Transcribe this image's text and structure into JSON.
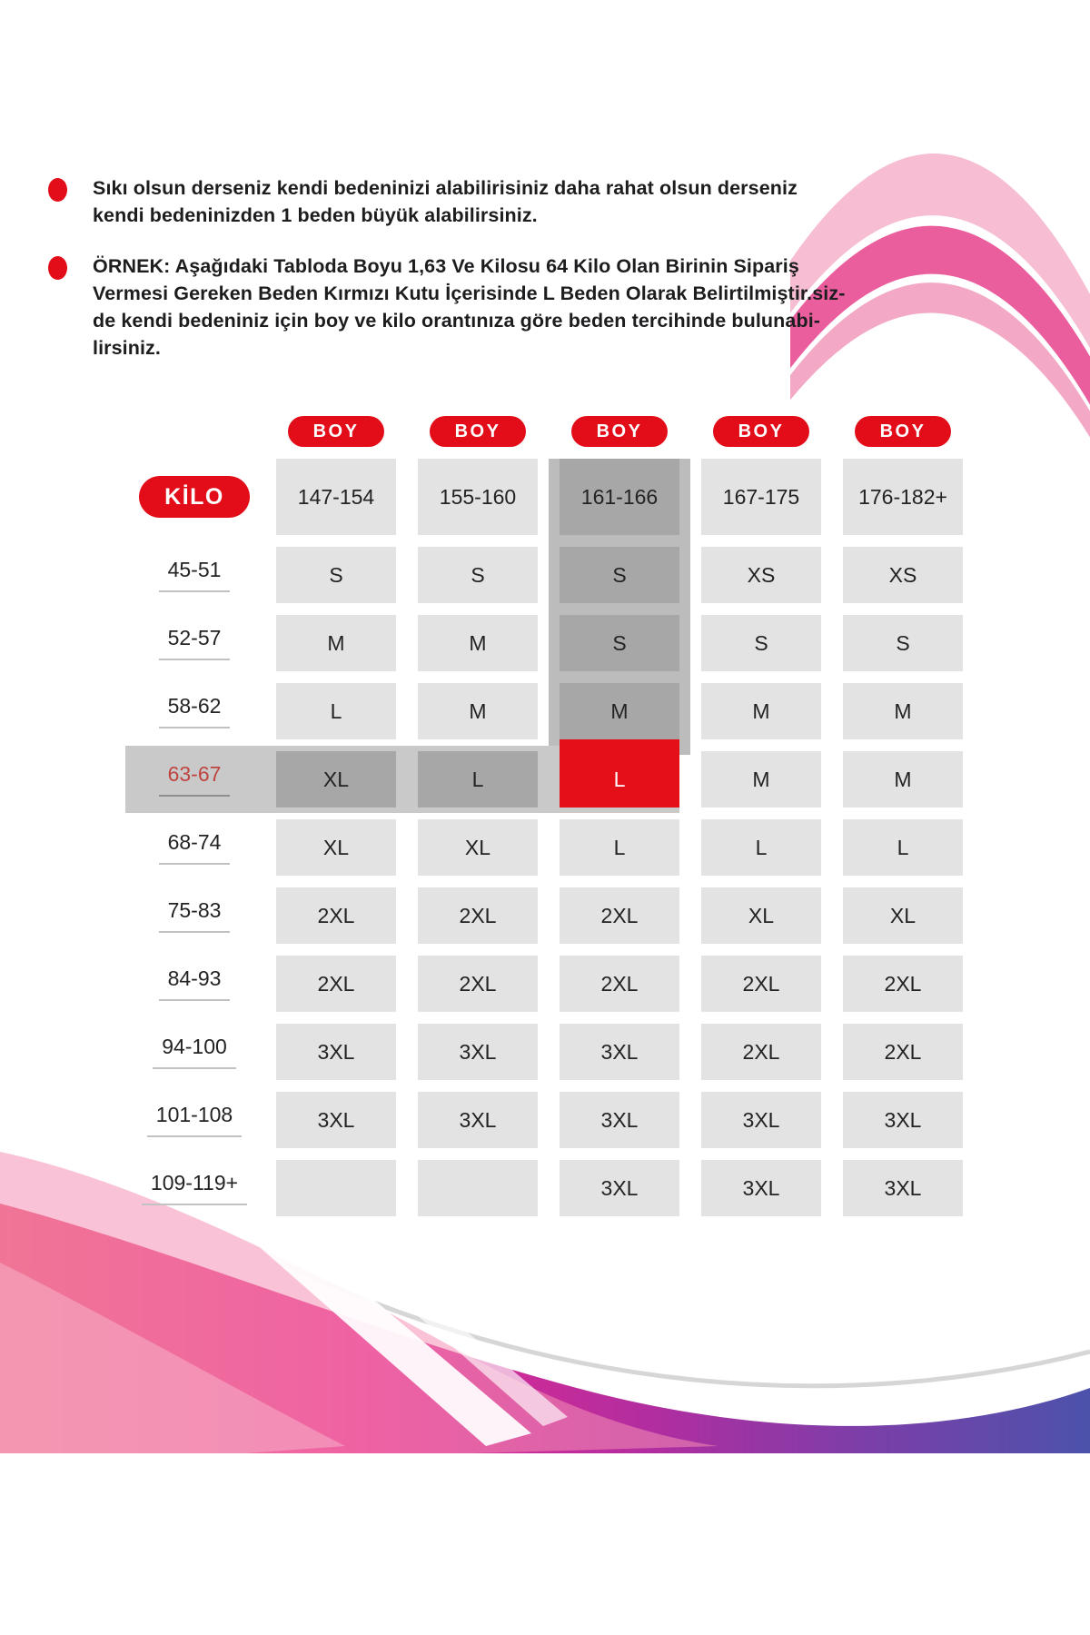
{
  "bullets": [
    {
      "text": "Sıkı olsun derseniz kendi bedeninizi alabilirisiniz daha rahat olsun derseniz\nkendi bedeninizden 1 beden büyük alabilirsiniz."
    },
    {
      "text": "ÖRNEK: Aşağıdaki Tabloda Boyu 1,63 Ve Kilosu 64 Kilo Olan Birinin Sipariş\nVermesi Gereken Beden Kırmızı Kutu İçerisinde L Beden Olarak Belirtilmiştir.siz-\nde kendi bedeniniz için boy ve kilo orantınıza göre beden tercihinde bulunabi-\nlirsiniz."
    }
  ],
  "chart_data": {
    "type": "table",
    "column_group_label": "BOY",
    "row_group_label": "KİLO",
    "columns": [
      "147-154",
      "155-160",
      "161-166",
      "167-175",
      "176-182+"
    ],
    "rows": [
      {
        "kilo": "45-51",
        "sizes": [
          "S",
          "S",
          "S",
          "XS",
          "XS"
        ]
      },
      {
        "kilo": "52-57",
        "sizes": [
          "M",
          "M",
          "S",
          "S",
          "S"
        ]
      },
      {
        "kilo": "58-62",
        "sizes": [
          "L",
          "M",
          "M",
          "M",
          "M"
        ]
      },
      {
        "kilo": "63-67",
        "sizes": [
          "XL",
          "L",
          "L",
          "M",
          "M"
        ]
      },
      {
        "kilo": "68-74",
        "sizes": [
          "XL",
          "XL",
          "L",
          "L",
          "L"
        ]
      },
      {
        "kilo": "75-83",
        "sizes": [
          "2XL",
          "2XL",
          "2XL",
          "XL",
          "XL"
        ]
      },
      {
        "kilo": "84-93",
        "sizes": [
          "2XL",
          "2XL",
          "2XL",
          "2XL",
          "2XL"
        ]
      },
      {
        "kilo": "94-100",
        "sizes": [
          "3XL",
          "3XL",
          "3XL",
          "2XL",
          "2XL"
        ]
      },
      {
        "kilo": "101-108",
        "sizes": [
          "3XL",
          "3XL",
          "3XL",
          "3XL",
          "3XL"
        ]
      },
      {
        "kilo": "109-119+",
        "sizes": [
          "",
          "",
          "3XL",
          "3XL",
          "3XL"
        ]
      }
    ],
    "highlight": {
      "row": "63-67",
      "column": "161-166",
      "selected_value": "L"
    }
  },
  "colors": {
    "red_pill": "#e20d18",
    "red_cell_bg": "#e50f17",
    "cell_bg": "#e3e3e3",
    "dim_cell_bg": "#a7a7a7",
    "column_band": "#bcbcbc",
    "row_band": "#c9c9c9",
    "text": "#232323",
    "weight_highlight_text": "#bf4440",
    "underline": "#c2c2c2",
    "underline_dark": "#8f8f8f"
  },
  "decorations": {
    "top_right_ribbons": [
      "#f6bdd3",
      "#eb5e9d",
      "#f3a8c6"
    ],
    "bottom_swoosh_gradient": [
      "#ea5570",
      "#e92b8e",
      "#b12da0",
      "#7a3fa9",
      "#4c52ab"
    ],
    "silver_curve": "#d6d6d6"
  }
}
